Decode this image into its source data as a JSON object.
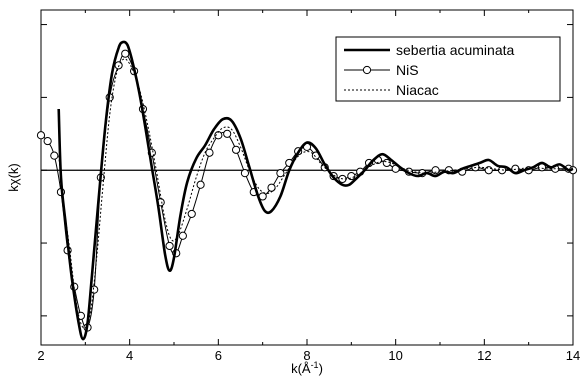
{
  "chart_data": {
    "type": "line",
    "xlabel": "k(Å",
    "xlabel_sup": "-1",
    "xlabel_end": ")",
    "ylabel": "kχ(k)",
    "xlim": [
      2,
      14
    ],
    "ylim": [
      -1.2,
      1.1
    ],
    "x_ticks": [
      2,
      4,
      6,
      8,
      10,
      12,
      14
    ],
    "x_tick_labels": [
      "2",
      "4",
      "6",
      "8",
      "10",
      "12",
      "14"
    ],
    "y_ticks": [
      -1,
      -0.5,
      0,
      0.5,
      1
    ],
    "y_tick_labels": [
      "",
      "",
      "",
      "",
      ""
    ],
    "zero_line": true,
    "legend_position": "top-right",
    "series": [
      {
        "name": "sebertia acuminata",
        "style": "thick-solid",
        "x": [
          2.4,
          2.45,
          2.55,
          2.7,
          2.85,
          2.95,
          3.05,
          3.15,
          3.3,
          3.45,
          3.6,
          3.75,
          3.85,
          3.95,
          4.05,
          4.2,
          4.35,
          4.5,
          4.65,
          4.8,
          4.9,
          5.0,
          5.15,
          5.3,
          5.5,
          5.7,
          5.9,
          6.1,
          6.3,
          6.5,
          6.7,
          6.9,
          7.05,
          7.2,
          7.4,
          7.6,
          7.8,
          8.0,
          8.2,
          8.4,
          8.6,
          8.8,
          8.95,
          9.1,
          9.3,
          9.5,
          9.7,
          9.9,
          10.1,
          10.3,
          10.5,
          10.7,
          10.9,
          11.1,
          11.3,
          11.5,
          11.7,
          11.9,
          12.1,
          12.3,
          12.5,
          12.7,
          12.9,
          13.1,
          13.3,
          13.5,
          13.7,
          13.9,
          14.0
        ],
        "y": [
          0.42,
          -0.05,
          -0.35,
          -0.75,
          -1.05,
          -1.16,
          -1.05,
          -0.72,
          -0.2,
          0.3,
          0.66,
          0.84,
          0.88,
          0.86,
          0.76,
          0.56,
          0.3,
          0.02,
          -0.26,
          -0.58,
          -0.69,
          -0.6,
          -0.3,
          -0.08,
          0.08,
          0.17,
          0.28,
          0.35,
          0.34,
          0.22,
          0.02,
          -0.18,
          -0.28,
          -0.28,
          -0.18,
          0.0,
          0.12,
          0.19,
          0.15,
          0.04,
          -0.05,
          -0.1,
          -0.1,
          -0.06,
          0.0,
          0.07,
          0.11,
          0.07,
          0.02,
          -0.02,
          -0.04,
          -0.02,
          -0.04,
          -0.01,
          -0.02,
          0.01,
          0.03,
          0.05,
          0.07,
          0.03,
          0.02,
          -0.02,
          0.0,
          0.02,
          0.05,
          0.02,
          0.04,
          0.0,
          0.01
        ]
      },
      {
        "name": "NiS",
        "style": "thin-solid-circles",
        "x": [
          2.0,
          2.15,
          2.3,
          2.45,
          2.6,
          2.75,
          2.9,
          3.05,
          3.2,
          3.35,
          3.55,
          3.75,
          3.9,
          4.1,
          4.3,
          4.5,
          4.7,
          4.9,
          5.05,
          5.2,
          5.4,
          5.6,
          5.8,
          6.0,
          6.2,
          6.4,
          6.6,
          6.8,
          7.0,
          7.2,
          7.4,
          7.6,
          7.8,
          8.0,
          8.2,
          8.4,
          8.6,
          8.8,
          9.0,
          9.2,
          9.4,
          9.6,
          9.8,
          10.0,
          10.3,
          10.6,
          10.9,
          11.2,
          11.5,
          11.8,
          12.1,
          12.4,
          12.7,
          13.0,
          13.3,
          13.6,
          13.9,
          14.0
        ],
        "y": [
          0.24,
          0.2,
          0.1,
          -0.15,
          -0.55,
          -0.8,
          -1.0,
          -1.08,
          -0.82,
          -0.05,
          0.5,
          0.72,
          0.8,
          0.68,
          0.42,
          0.12,
          -0.22,
          -0.52,
          -0.57,
          -0.45,
          -0.3,
          -0.1,
          0.12,
          0.24,
          0.25,
          0.14,
          -0.02,
          -0.15,
          -0.18,
          -0.12,
          -0.02,
          0.05,
          0.13,
          0.16,
          0.1,
          0.02,
          -0.04,
          -0.06,
          -0.04,
          -0.01,
          0.05,
          0.07,
          0.05,
          0.01,
          -0.01,
          -0.02,
          0.0,
          0.0,
          -0.01,
          0.02,
          0.0,
          0.0,
          0.01,
          0.0,
          0.02,
          0.01,
          0.01,
          0.0
        ]
      },
      {
        "name": "Niacac",
        "style": "dotted",
        "x": [
          2.4,
          2.5,
          2.65,
          2.8,
          2.95,
          3.1,
          3.25,
          3.4,
          3.55,
          3.7,
          3.85,
          4.0,
          4.2,
          4.4,
          4.6,
          4.8,
          4.95,
          5.1,
          5.3,
          5.5,
          5.7,
          5.9,
          6.1,
          6.3,
          6.5,
          6.7,
          6.9,
          7.1,
          7.3,
          7.5,
          7.7,
          7.9,
          8.1,
          8.3,
          8.5,
          8.7,
          8.9,
          9.1,
          9.3,
          9.5,
          9.7,
          9.9,
          10.1,
          10.4,
          10.7,
          11.0,
          11.3,
          11.6,
          11.9,
          12.2,
          12.5,
          12.8,
          13.1,
          13.4,
          13.7,
          14.0
        ],
        "y": [
          0.1,
          -0.2,
          -0.55,
          -0.92,
          -1.08,
          -1.0,
          -0.62,
          -0.1,
          0.38,
          0.66,
          0.76,
          0.73,
          0.58,
          0.32,
          0.0,
          -0.34,
          -0.48,
          -0.44,
          -0.26,
          -0.05,
          0.12,
          0.22,
          0.29,
          0.28,
          0.16,
          0.0,
          -0.12,
          -0.16,
          -0.12,
          -0.03,
          0.06,
          0.12,
          0.12,
          0.05,
          -0.01,
          -0.05,
          -0.06,
          -0.04,
          0.0,
          0.04,
          0.06,
          0.05,
          0.02,
          -0.01,
          -0.02,
          -0.01,
          0.0,
          0.01,
          0.02,
          0.01,
          0.0,
          0.01,
          0.02,
          0.01,
          0.01,
          0.0
        ]
      }
    ]
  }
}
